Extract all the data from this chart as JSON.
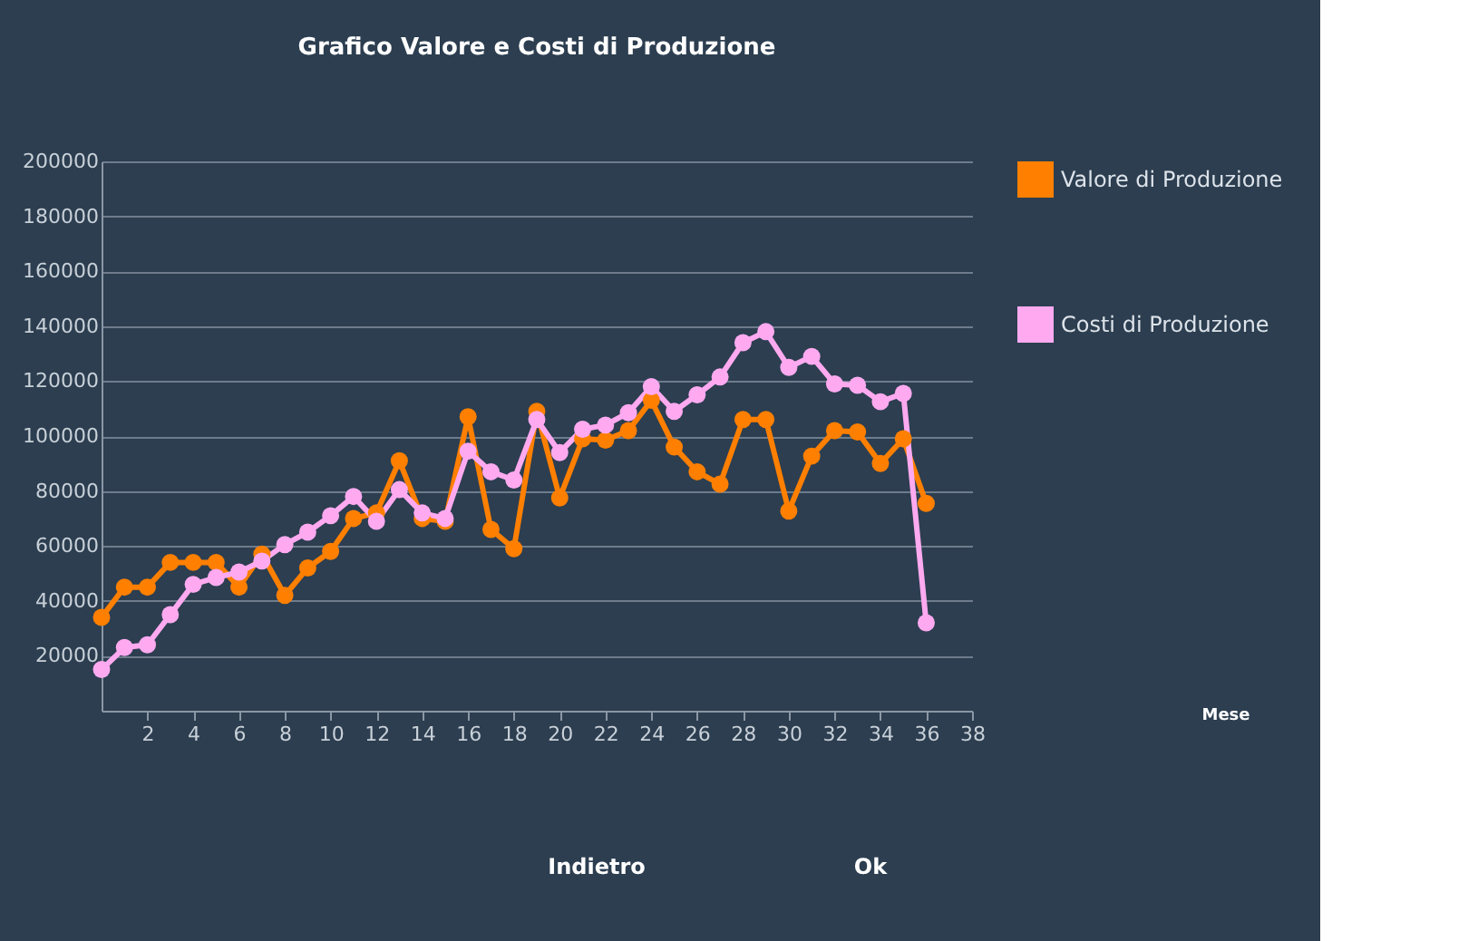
{
  "chart_data": {
    "type": "line",
    "title": "Grafico Valore e Costi di Produzione",
    "x": [
      0,
      1,
      2,
      3,
      4,
      5,
      6,
      7,
      8,
      9,
      10,
      11,
      12,
      13,
      14,
      15,
      16,
      17,
      18,
      19,
      20,
      21,
      22,
      23,
      24,
      25,
      26,
      27,
      28,
      29,
      30,
      31,
      32,
      33,
      34,
      35,
      36
    ],
    "series": [
      {
        "name": "Valore di Produzione",
        "color": "#ff7f00",
        "values": [
          34000,
          45000,
          45000,
          54000,
          54000,
          54000,
          45000,
          57000,
          42000,
          52000,
          58000,
          70000,
          72000,
          91000,
          70000,
          69000,
          107000,
          66000,
          59000,
          109000,
          77500,
          99000,
          98500,
          102000,
          113000,
          96000,
          87000,
          82500,
          106000,
          106000,
          72700,
          92700,
          102000,
          101500,
          90000,
          99000,
          75500
        ]
      },
      {
        "name": "Costi di Produzione",
        "color": "#ffaaf0",
        "values": [
          15000,
          23000,
          24000,
          35000,
          46000,
          48500,
          50500,
          54500,
          60500,
          65000,
          71000,
          78000,
          69000,
          80500,
          72000,
          70000,
          94500,
          87000,
          84000,
          106000,
          94000,
          102500,
          104000,
          108500,
          118000,
          109000,
          115000,
          121500,
          134000,
          138000,
          125000,
          129000,
          119000,
          118500,
          112500,
          115500,
          32000
        ]
      }
    ],
    "xlim": [
      0,
      38
    ],
    "xticks": [
      2,
      4,
      6,
      8,
      10,
      12,
      14,
      16,
      18,
      20,
      22,
      24,
      26,
      28,
      30,
      32,
      34,
      36,
      38
    ],
    "ylim": [
      0,
      200000
    ],
    "yticks": [
      20000,
      40000,
      60000,
      80000,
      100000,
      120000,
      140000,
      160000,
      180000,
      200000
    ],
    "grid": "y",
    "legend": "right",
    "marker": "circle",
    "line_style": "solid",
    "annotations": [
      "Mese",
      "Indietro",
      "Ok"
    ]
  }
}
